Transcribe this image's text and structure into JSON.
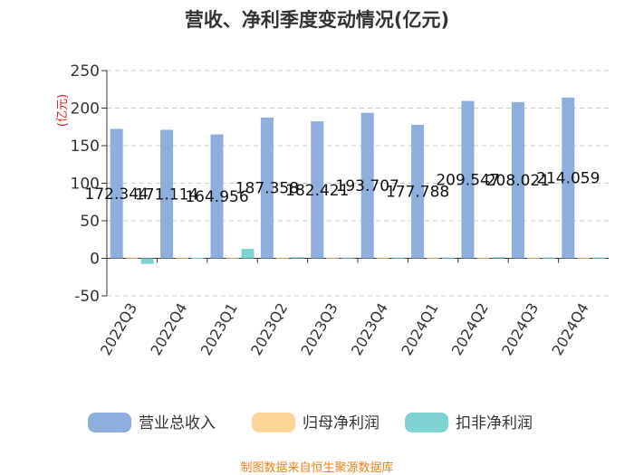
{
  "chart_data": {
    "type": "bar",
    "title": "营收、净利季度变动情况(亿元)",
    "unit_label": "(亿元)",
    "categories": [
      "2022Q3",
      "2022Q4",
      "2023Q1",
      "2023Q2",
      "2023Q3",
      "2023Q4",
      "2024Q1",
      "2024Q2",
      "2024Q3",
      "2024Q4"
    ],
    "series": [
      {
        "name": "营业总收入",
        "color": "#8eaedd",
        "values": [
          172.344,
          171.114,
          164.956,
          187.358,
          182.421,
          193.707,
          177.788,
          209.547,
          208.021,
          214.059
        ],
        "labels": [
          "172.344",
          "171.114",
          "164.956",
          "187.358",
          "182.421",
          "193.707",
          "177.788",
          "209.547",
          "208.021",
          "214.059"
        ]
      },
      {
        "name": "归母净利润",
        "color": "#fcd699",
        "values": [
          1.0,
          1.0,
          1.0,
          1.0,
          1.0,
          1.0,
          1.0,
          1.0,
          1.0,
          1.0
        ]
      },
      {
        "name": "扣非净利润",
        "color": "#7dd4d2",
        "values": [
          -7.5,
          0.5,
          12.5,
          1.5,
          1.0,
          1.0,
          1.0,
          1.5,
          1.0,
          1.0
        ]
      }
    ],
    "ylim": [
      -50,
      250
    ],
    "yticks": [
      -50,
      0,
      50,
      100,
      150,
      200,
      250
    ],
    "grid": true,
    "legend_position": "bottom"
  },
  "source_note": "制图数据来自恒生聚源数据库"
}
